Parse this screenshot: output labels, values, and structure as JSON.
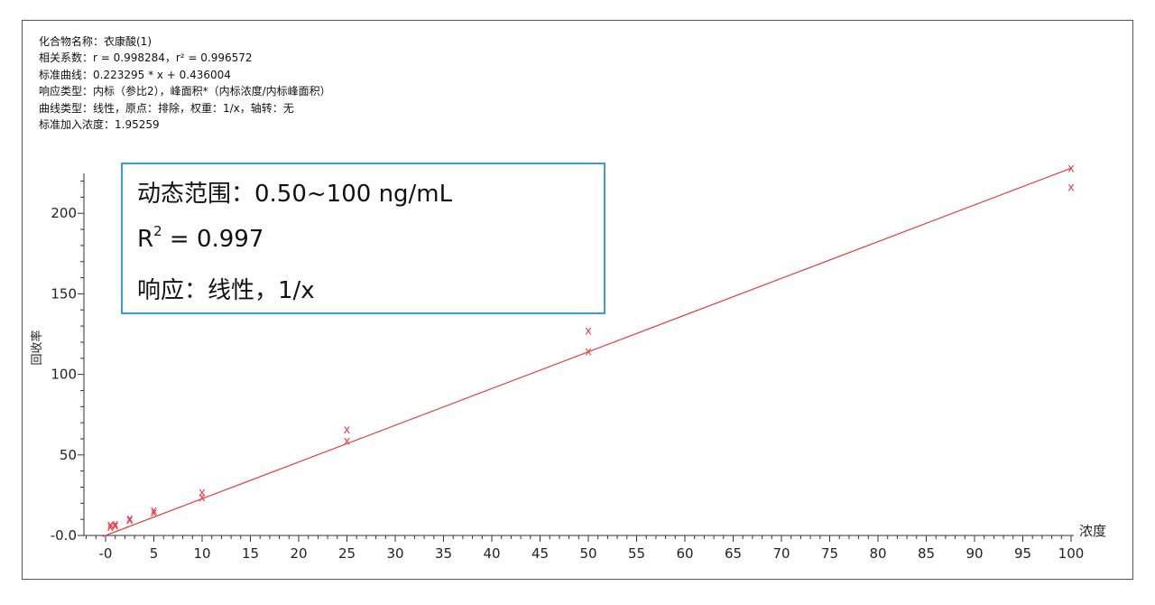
{
  "info_lines": [
    "化合物名称：衣康酸(1)",
    "相关系数：r = 0.998284，r² = 0.996572",
    "标准曲线：0.223295 * x + 0.436004",
    "响应类型：内标（参比2），峰面积*（内标浓度/内标峰面积）",
    "曲线类型：线性，原点：排除，权重：1/x，轴转：无",
    "标准加入浓度：1.95259"
  ],
  "callout": {
    "line1": "动态范围：0.50~100 ng/mL",
    "line2_prefix": "R",
    "line2_sup": "2",
    "line2_suffix": " = 0.997",
    "line3": "响应：线性，1/x"
  },
  "chart_data": {
    "type": "scatter",
    "xlabel": "浓度",
    "ylabel": "回收率",
    "xlim": [
      -2,
      101
    ],
    "ylim": [
      -0.5,
      228
    ],
    "x_tick_labels": [
      "-0",
      "5",
      "10",
      "15",
      "20",
      "25",
      "30",
      "35",
      "40",
      "45",
      "50",
      "55",
      "60",
      "65",
      "70",
      "75",
      "80",
      "85",
      "90",
      "95",
      "100"
    ],
    "x_tick_values": [
      0,
      5,
      10,
      15,
      20,
      25,
      30,
      35,
      40,
      45,
      50,
      55,
      60,
      65,
      70,
      75,
      80,
      85,
      90,
      95,
      100
    ],
    "y_tick_labels": [
      "-0.0",
      "50",
      "100",
      "150",
      "200"
    ],
    "y_tick_values": [
      0,
      50,
      100,
      150,
      200
    ],
    "points": [
      {
        "x": 0.5,
        "y": 6.5
      },
      {
        "x": 0.5,
        "y": 5.0
      },
      {
        "x": 1.0,
        "y": 7.0
      },
      {
        "x": 1.0,
        "y": 6.0
      },
      {
        "x": 2.5,
        "y": 10.5
      },
      {
        "x": 2.5,
        "y": 9.5
      },
      {
        "x": 5.0,
        "y": 15.5
      },
      {
        "x": 5.0,
        "y": 14.0
      },
      {
        "x": 10.0,
        "y": 26.5
      },
      {
        "x": 10.0,
        "y": 23.5
      },
      {
        "x": 25.0,
        "y": 65.5
      },
      {
        "x": 25.0,
        "y": 58.5
      },
      {
        "x": 50.0,
        "y": 127.0
      },
      {
        "x": 50.0,
        "y": 114.0
      },
      {
        "x": 100.0,
        "y": 228.0
      },
      {
        "x": 100.0,
        "y": 216.0
      }
    ],
    "fit": {
      "slope": 2.28,
      "intercept": 0.0,
      "x_range": [
        -0.3,
        100
      ]
    },
    "colors": {
      "marker": "#e8404a",
      "line": "#e04040",
      "axis": "#333333"
    }
  }
}
